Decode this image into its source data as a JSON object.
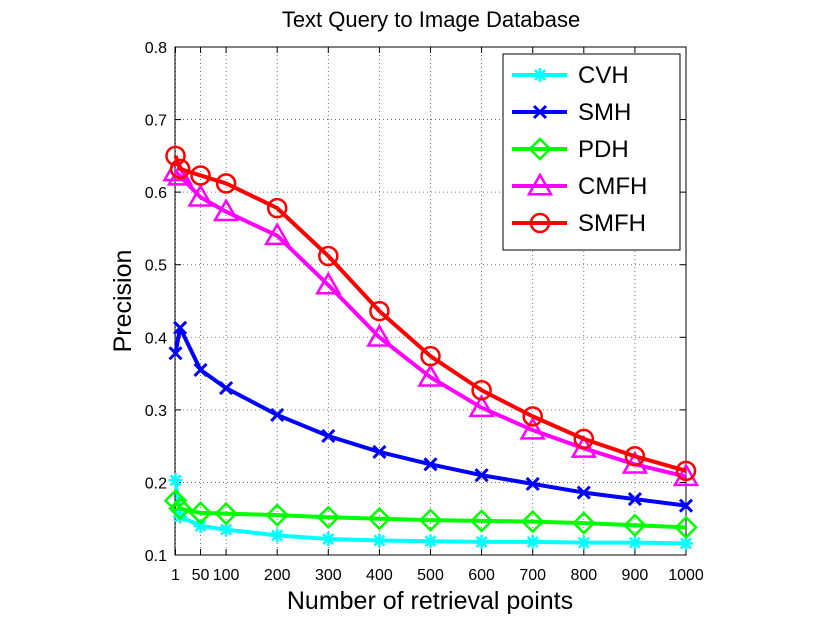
{
  "chart_data": {
    "type": "line",
    "title": "Text Query to Image Database",
    "xlabel": "Number of retrieval points",
    "ylabel": "Precision",
    "x": [
      1,
      10,
      50,
      100,
      200,
      300,
      400,
      500,
      600,
      700,
      800,
      900,
      1000
    ],
    "xticks": [
      1,
      50,
      100,
      200,
      300,
      400,
      500,
      600,
      700,
      800,
      900,
      1000
    ],
    "xtick_labels": [
      "1",
      "50",
      "100",
      "200",
      "300",
      "400",
      "500",
      "600",
      "700",
      "800",
      "900",
      "1000"
    ],
    "xlim": [
      0,
      1000
    ],
    "ylim": [
      0.1,
      0.8
    ],
    "yticks": [
      0.1,
      0.2,
      0.3,
      0.4,
      0.5,
      0.6,
      0.7,
      0.8
    ],
    "ytick_labels": [
      "0.1",
      "0.2",
      "0.3",
      "0.4",
      "0.5",
      "0.6",
      "0.7",
      "0.8"
    ],
    "grid": true,
    "legend_position": "top-right",
    "series": [
      {
        "name": "CVH",
        "color": "#00ffff",
        "marker": "asterisk",
        "values": [
          0.203,
          0.153,
          0.14,
          0.135,
          0.127,
          0.122,
          0.12,
          0.119,
          0.118,
          0.118,
          0.117,
          0.117,
          0.116
        ]
      },
      {
        "name": "SMH",
        "color": "#0000ff",
        "marker": "x",
        "values": [
          0.378,
          0.413,
          0.355,
          0.33,
          0.293,
          0.264,
          0.242,
          0.225,
          0.21,
          0.198,
          0.186,
          0.177,
          0.168
        ]
      },
      {
        "name": "PDH",
        "color": "#00ff00",
        "marker": "diamond",
        "values": [
          0.175,
          0.164,
          0.158,
          0.157,
          0.155,
          0.152,
          0.15,
          0.148,
          0.147,
          0.146,
          0.144,
          0.141,
          0.138
        ]
      },
      {
        "name": "CMFH",
        "color": "#ff00ff",
        "marker": "triangle",
        "values": [
          0.628,
          0.622,
          0.593,
          0.573,
          0.54,
          0.472,
          0.4,
          0.345,
          0.303,
          0.272,
          0.247,
          0.225,
          0.208
        ]
      },
      {
        "name": "SMFH",
        "color": "#ff0000",
        "marker": "circle",
        "values": [
          0.65,
          0.632,
          0.623,
          0.612,
          0.578,
          0.512,
          0.436,
          0.374,
          0.327,
          0.291,
          0.26,
          0.236,
          0.216
        ]
      }
    ]
  }
}
